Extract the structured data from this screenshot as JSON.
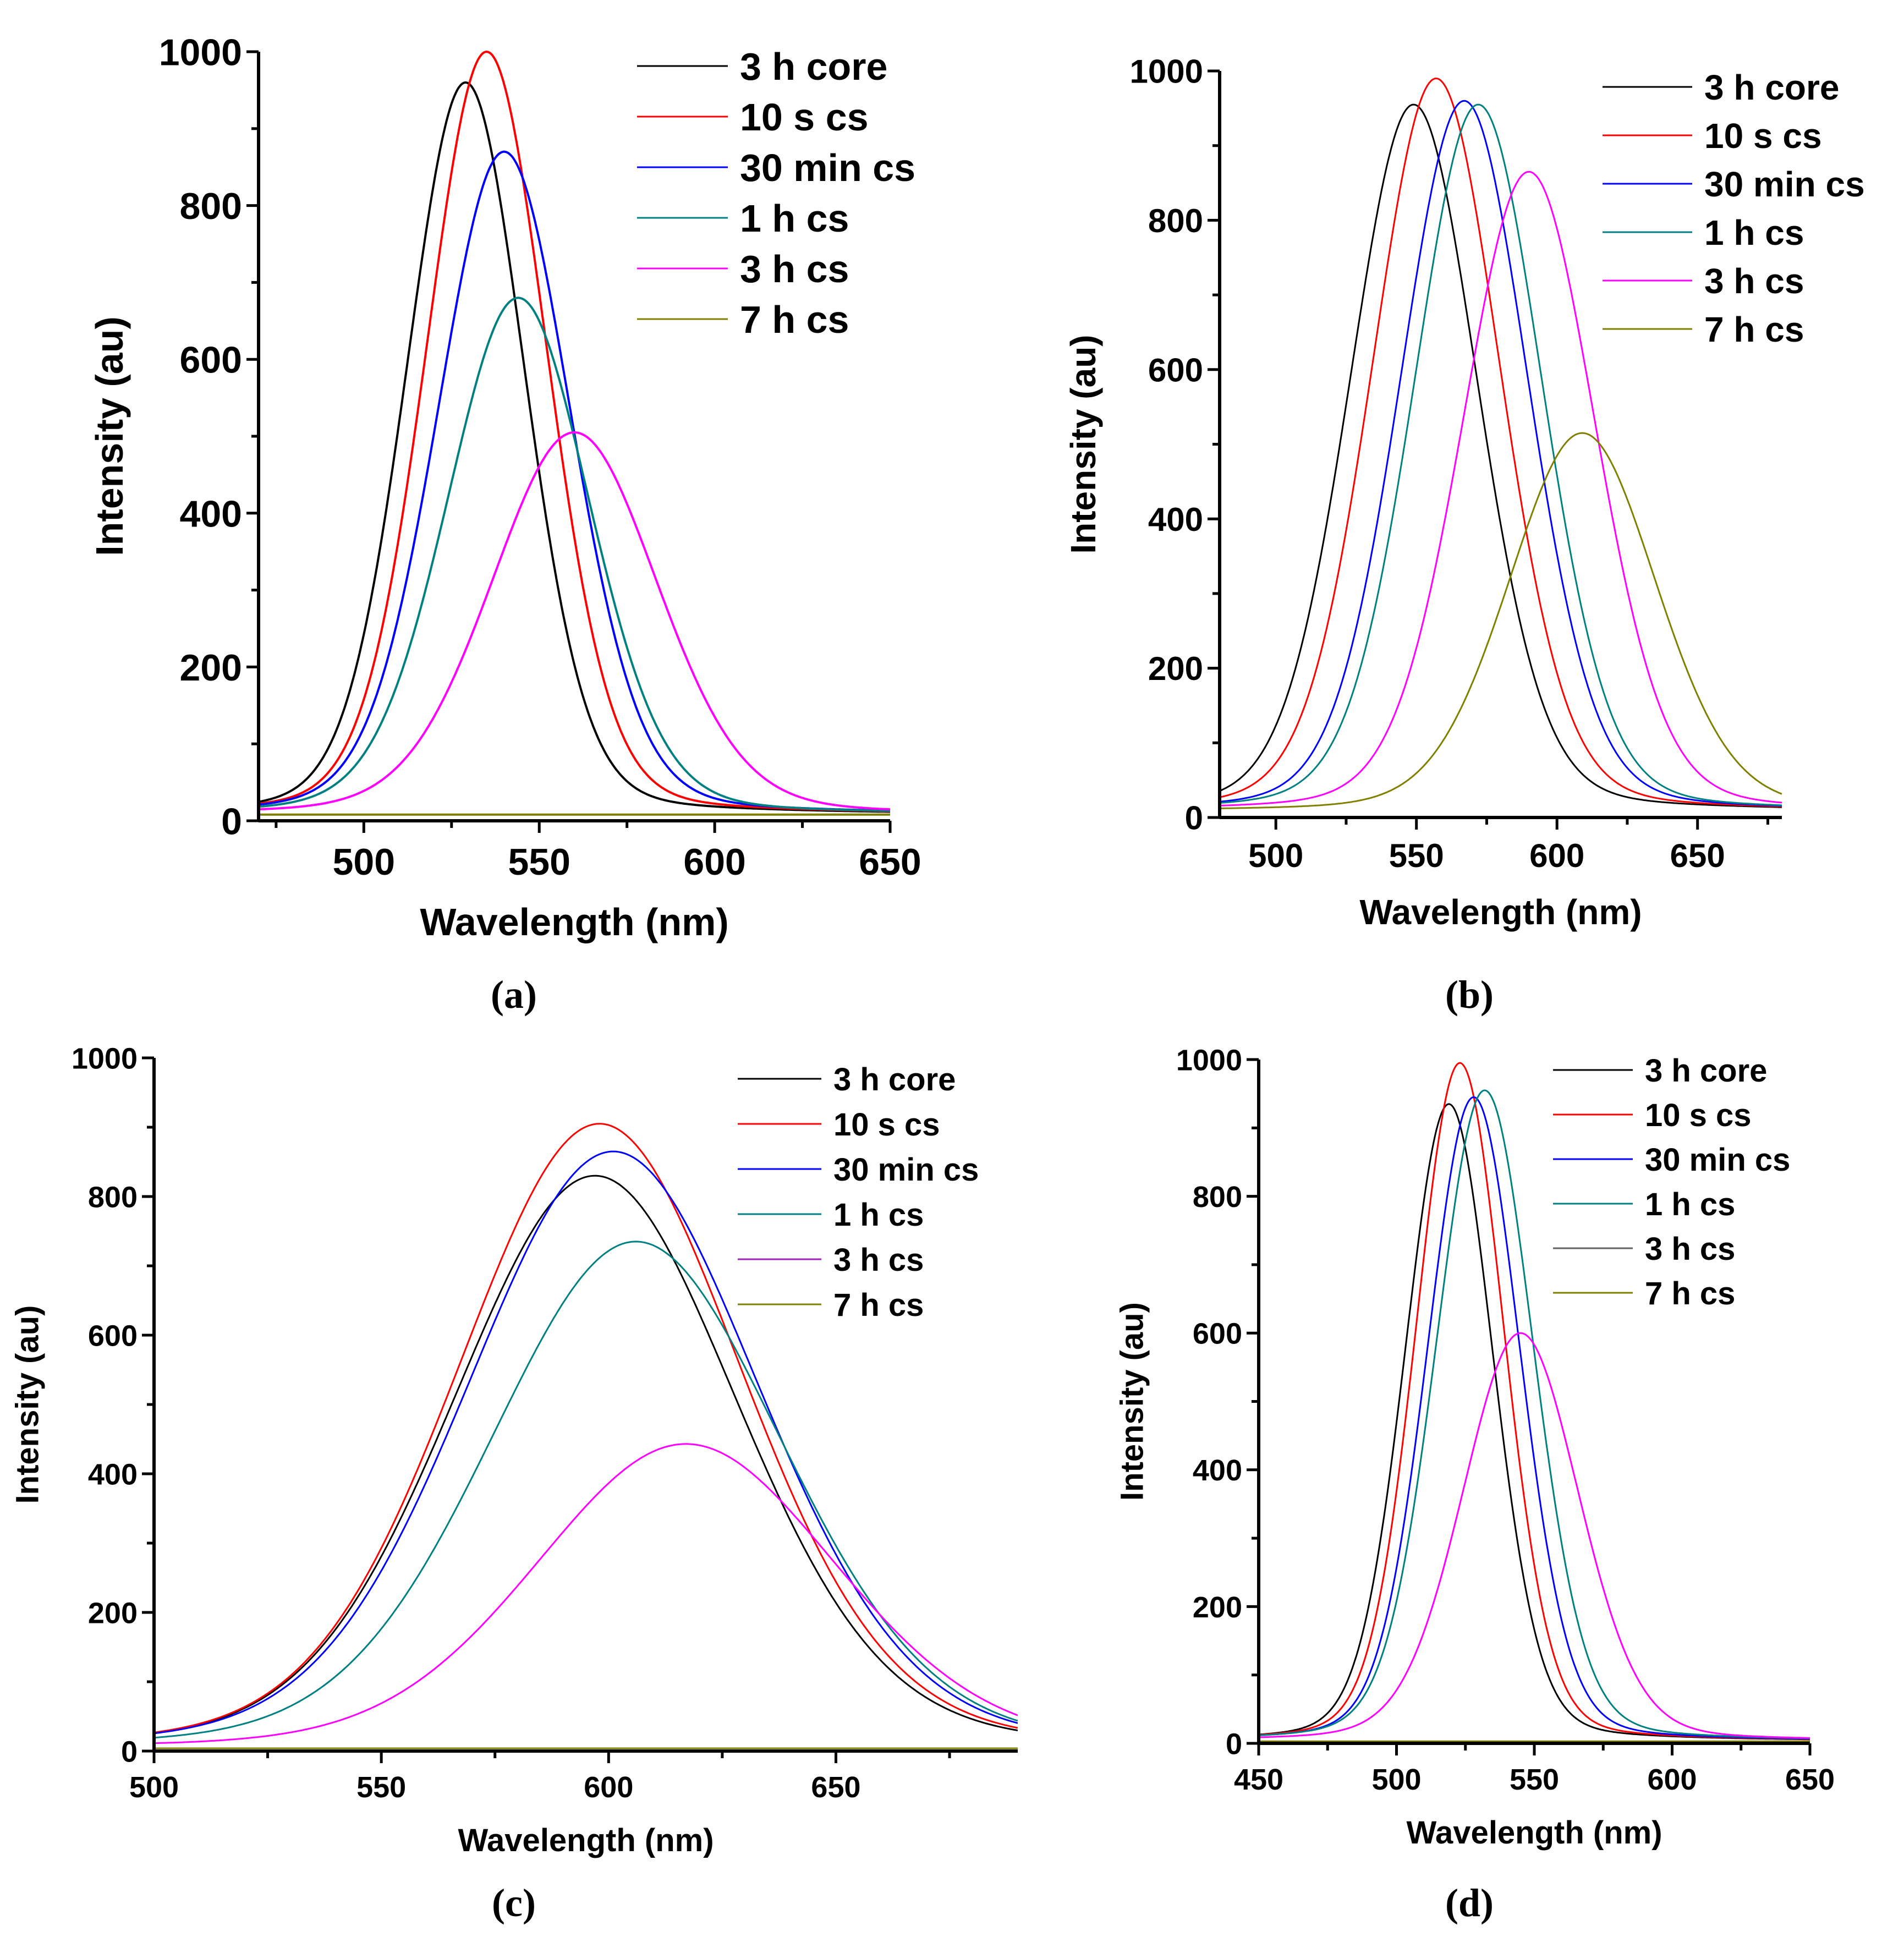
{
  "chart_data": [
    {
      "panel": "(a)",
      "type": "line",
      "xlabel": "Wavelength (nm)",
      "ylabel": "Intensity (au)",
      "xlim": [
        470,
        650
      ],
      "ylim": [
        0,
        1000
      ],
      "xticks": [
        500,
        550,
        600,
        650
      ],
      "yticks": [
        0,
        200,
        400,
        600,
        800,
        1000
      ],
      "legend": "top-right",
      "baseline": 8,
      "series": [
        {
          "name": "3 h core",
          "color": "#000000",
          "peak": 529,
          "intensity": 960,
          "fwhm": 40
        },
        {
          "name": "10 s cs",
          "color": "#ff0000",
          "peak": 535,
          "intensity": 1000,
          "fwhm": 41
        },
        {
          "name": "30 min cs",
          "color": "#0000ff",
          "peak": 540,
          "intensity": 870,
          "fwhm": 45
        },
        {
          "name": "1 h cs",
          "color": "#008080",
          "peak": 544,
          "intensity": 680,
          "fwhm": 48
        },
        {
          "name": "3 h cs",
          "color": "#ff00ff",
          "peak": 560,
          "intensity": 505,
          "fwhm": 56
        },
        {
          "name": "7 h cs",
          "color": "#808000",
          "peak": 570,
          "intensity": 2,
          "fwhm": 80
        }
      ]
    },
    {
      "panel": "(b)",
      "type": "line",
      "xlabel": "Wavelength (nm)",
      "ylabel": "Intensity (au)",
      "xlim": [
        480,
        680
      ],
      "ylim": [
        0,
        1000
      ],
      "xticks": [
        500,
        550,
        600,
        650
      ],
      "yticks": [
        0,
        200,
        400,
        600,
        800,
        1000
      ],
      "legend": "top-right",
      "baseline": 8,
      "series": [
        {
          "name": "3 h core",
          "color": "#000000",
          "peak": 549,
          "intensity": 955,
          "fwhm": 54
        },
        {
          "name": "10 s cs",
          "color": "#ff0000",
          "peak": 557,
          "intensity": 990,
          "fwhm": 54
        },
        {
          "name": "30 min cs",
          "color": "#0000ff",
          "peak": 567,
          "intensity": 960,
          "fwhm": 54
        },
        {
          "name": "1 h cs",
          "color": "#008080",
          "peak": 572,
          "intensity": 955,
          "fwhm": 54
        },
        {
          "name": "3 h cs",
          "color": "#ff00ff",
          "peak": 590,
          "intensity": 865,
          "fwhm": 56
        },
        {
          "name": "7 h cs",
          "color": "#808000",
          "peak": 609,
          "intensity": 515,
          "fwhm": 62
        }
      ]
    },
    {
      "panel": "(c)",
      "type": "line",
      "xlabel": "Wavelength (nm)",
      "ylabel": "Intensity (au)",
      "xlim": [
        500,
        690
      ],
      "ylim": [
        0,
        1000
      ],
      "xticks": [
        500,
        550,
        600,
        650
      ],
      "yticks": [
        0,
        200,
        400,
        600,
        800,
        1000
      ],
      "legend": "top-right",
      "baseline": 4,
      "series": [
        {
          "name": "3 h core",
          "color": "#000000",
          "peak": 597,
          "intensity": 830,
          "fwhm": 74
        },
        {
          "name": "10 s cs",
          "color": "#ff0000",
          "peak": 598,
          "intensity": 905,
          "fwhm": 74
        },
        {
          "name": "30 min cs",
          "color": "#0000ff",
          "peak": 601,
          "intensity": 865,
          "fwhm": 76
        },
        {
          "name": "1 h cs",
          "color": "#008080",
          "peak": 606,
          "intensity": 735,
          "fwhm": 76
        },
        {
          "name": "3 h cs",
          "color": "#ff00ff",
          "peak": 617,
          "intensity": 443,
          "fwhm": 78
        },
        {
          "name": "7 h cs",
          "color": "#808000",
          "peak": 640,
          "intensity": 3,
          "fwhm": 90
        }
      ]
    },
    {
      "panel": "(d)",
      "type": "line",
      "xlabel": "Wavelength (nm)",
      "ylabel": "Intensity (au)",
      "xlim": [
        450,
        650
      ],
      "ylim": [
        0,
        1000
      ],
      "xticks": [
        450,
        500,
        550,
        600,
        650
      ],
      "yticks": [
        0,
        200,
        400,
        600,
        800,
        1000
      ],
      "legend": "top-right",
      "baseline": 3,
      "series": [
        {
          "name": "3 h core",
          "color": "#000000",
          "peak": 519,
          "intensity": 935,
          "fwhm": 38
        },
        {
          "name": "10 s cs",
          "color": "#ff0000",
          "peak": 523,
          "intensity": 995,
          "fwhm": 38
        },
        {
          "name": "30 min cs",
          "color": "#0000ff",
          "peak": 528,
          "intensity": 945,
          "fwhm": 40
        },
        {
          "name": "1 h cs",
          "color": "#008080",
          "peak": 532,
          "intensity": 955,
          "fwhm": 42
        },
        {
          "name": "3 h cs",
          "color": "#ff00ff",
          "peak": 545,
          "intensity": 600,
          "fwhm": 50
        },
        {
          "name": "7 h cs",
          "color": "#808000",
          "peak": 560,
          "intensity": 1,
          "fwhm": 80
        }
      ]
    }
  ]
}
